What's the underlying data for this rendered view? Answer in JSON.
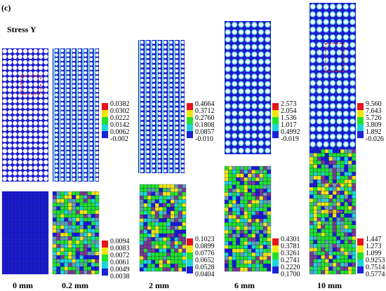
{
  "figure": {
    "panel_label": "(c)",
    "title": "Stress Y"
  },
  "columns": [
    {
      "label": "0 mm",
      "top_legend": null,
      "bottom_legend": null
    },
    {
      "label": "0.2 mm",
      "top_legend": [
        "0.0382",
        "0.0302",
        "0.0222",
        "0.0142",
        "0.0062",
        "-0.002"
      ],
      "bottom_legend": [
        "0.0094",
        "0.0083",
        "0.0072",
        "0.0061",
        "0.0049",
        "0.0038"
      ]
    },
    {
      "label": "2 mm",
      "top_legend": [
        "0.4664",
        "0.3712",
        "0.2760",
        "0.1808",
        "0.0857",
        "-0.010"
      ],
      "bottom_legend": [
        "0.1023",
        "0.0899",
        "0.0776",
        "0.0652",
        "0.0528",
        "0.0404"
      ]
    },
    {
      "label": "6 mm",
      "top_legend": [
        "2.573",
        "2.054",
        "1.536",
        "1.017",
        "0.4992",
        "-0.019"
      ],
      "bottom_legend": [
        "0.4301",
        "0.3781",
        "0.3261",
        "0.2741",
        "0.2220",
        "0.1700"
      ]
    },
    {
      "label": "10 mm",
      "top_legend": [
        "9.560",
        "7.643",
        "5.726",
        "3.809",
        "1.892",
        "-0.026"
      ],
      "bottom_legend": [
        "1.447",
        "1.273",
        "1.099",
        "0.9253",
        "0.7514",
        "0.5774"
      ]
    }
  ],
  "colors": {
    "legend": [
      "#e8131b",
      "#f0e70c",
      "#22e12b",
      "#1bd6d6",
      "#1a22d8"
    ],
    "mesh_blue": "#1b1bd0",
    "hole_white": "#ffffff",
    "hole_cyan": "#7fe9e0",
    "highlight_red": "#e8131b",
    "highlight_gold": "#d4b000"
  }
}
